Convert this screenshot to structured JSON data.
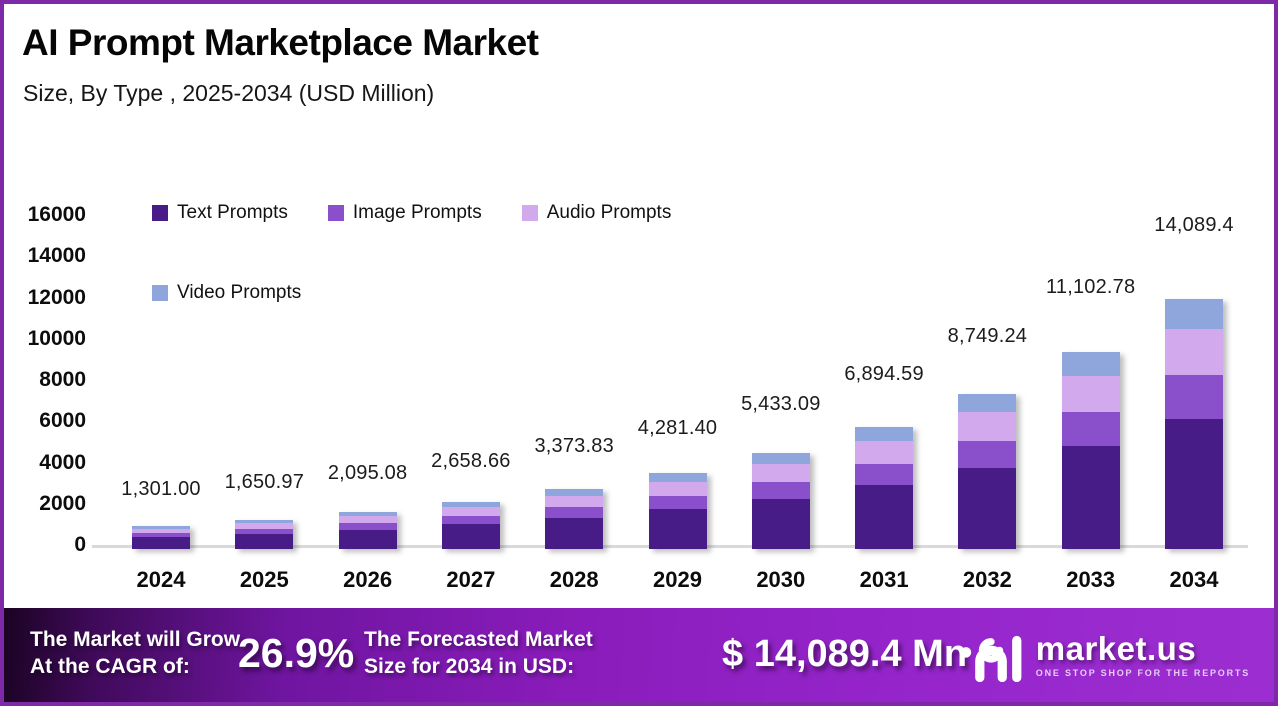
{
  "header": {
    "title": "AI Prompt Marketplace Market",
    "subtitle": "Size, By Type , 2025-2034 (USD Million)"
  },
  "chart_data": {
    "type": "bar",
    "stacked": true,
    "title": "AI Prompt Marketplace Market Size, By Type, 2025-2034 (USD Million)",
    "categories": [
      "2024",
      "2025",
      "2026",
      "2027",
      "2028",
      "2029",
      "2030",
      "2031",
      "2032",
      "2033",
      "2034"
    ],
    "series": [
      {
        "name": "Text Prompts",
        "color": "#471c87",
        "values": [
          677,
          859,
          1089,
          1382,
          1754,
          2226,
          2825,
          3585,
          4550,
          5773,
          7327
        ]
      },
      {
        "name": "Image Prompts",
        "color": "#8a50cb",
        "values": [
          229,
          291,
          369,
          468,
          594,
          754,
          956,
          1213,
          1540,
          1954,
          2480
        ]
      },
      {
        "name": "Audio Prompts",
        "color": "#d2a9ec",
        "values": [
          239,
          304,
          386,
          489,
          621,
          788,
          1000,
          1269,
          1610,
          2043,
          2592
        ]
      },
      {
        "name": "Video Prompts",
        "color": "#8ea6dc",
        "values": [
          156,
          197,
          251,
          319,
          405,
          513,
          652,
          828,
          1049,
          1333,
          1690
        ]
      }
    ],
    "totals": [
      1301.0,
      1650.97,
      2095.08,
      2658.66,
      3373.83,
      4281.4,
      5433.09,
      6894.59,
      8749.24,
      11102.78,
      14089.4
    ],
    "total_labels": [
      "1,301.00",
      "1,650.97",
      "2,095.08",
      "2,658.66",
      "3,373.83",
      "4,281.40",
      "5,433.09",
      "6,894.59",
      "8,749.24",
      "11,102.78",
      "14,089.4"
    ],
    "xlabel": "",
    "ylabel": "",
    "y_ticks": [
      0,
      2000,
      4000,
      6000,
      8000,
      10000,
      12000,
      14000,
      16000
    ],
    "ylim": [
      0,
      16000
    ],
    "grid": false,
    "legend_position": "top-left"
  },
  "banner": {
    "cagr_label_line1": "The Market will Grow",
    "cagr_label_line2": "At the CAGR of:",
    "cagr_value": "26.9%",
    "forecast_label_line1": "The Forecasted Market",
    "forecast_label_line2": "Size for 2034 in USD:",
    "forecast_value": "$ 14,089.4 Mn",
    "brand_name": "market.us",
    "brand_tagline": "ONE STOP SHOP FOR THE REPORTS"
  },
  "colors": {
    "frame_border": "#7e2aa8",
    "axis_line": "#d9d9d9",
    "banner_gradient_start": "#1b0323",
    "banner_gradient_end": "#9c2ed1"
  }
}
